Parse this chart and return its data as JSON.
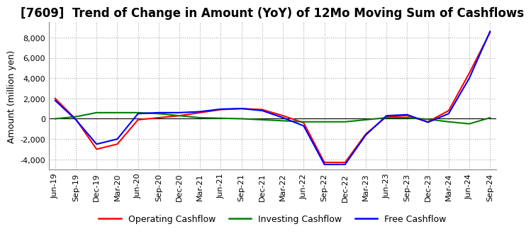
{
  "title": "[7609]  Trend of Change in Amount (YoY) of 12Mo Moving Sum of Cashflows",
  "ylabel": "Amount (million yen)",
  "ylim": [
    -5000,
    9500
  ],
  "yticks": [
    -4000,
    -2000,
    0,
    2000,
    4000,
    6000,
    8000
  ],
  "x_labels": [
    "Jun-19",
    "Sep-19",
    "Dec-19",
    "Mar-20",
    "Jun-20",
    "Sep-20",
    "Dec-20",
    "Mar-21",
    "Jun-21",
    "Sep-21",
    "Dec-21",
    "Mar-22",
    "Jun-22",
    "Sep-22",
    "Dec-22",
    "Mar-23",
    "Jun-23",
    "Sep-23",
    "Dec-23",
    "Mar-24",
    "Jun-24",
    "Sep-24"
  ],
  "operating": [
    2000,
    -50,
    -3000,
    -2500,
    -100,
    100,
    300,
    600,
    900,
    1000,
    900,
    300,
    -400,
    -4300,
    -4300,
    -1500,
    200,
    300,
    -300,
    800,
    4500,
    8500
  ],
  "investing": [
    0,
    200,
    600,
    600,
    600,
    500,
    300,
    100,
    50,
    0,
    -100,
    -200,
    -300,
    -300,
    -300,
    -100,
    100,
    100,
    -50,
    -300,
    -500,
    100
  ],
  "free": [
    1800,
    -100,
    -2500,
    -2000,
    500,
    600,
    600,
    700,
    950,
    1000,
    800,
    100,
    -700,
    -4500,
    -4500,
    -1600,
    300,
    400,
    -350,
    500,
    4000,
    8600
  ],
  "colors": {
    "operating": "#ff0000",
    "investing": "#008000",
    "free": "#0000ff"
  },
  "legend_labels": [
    "Operating Cashflow",
    "Investing Cashflow",
    "Free Cashflow"
  ],
  "background_color": "#ffffff",
  "grid_color": "#aaaaaa",
  "title_fontsize": 12,
  "axis_fontsize": 9,
  "tick_fontsize": 8
}
